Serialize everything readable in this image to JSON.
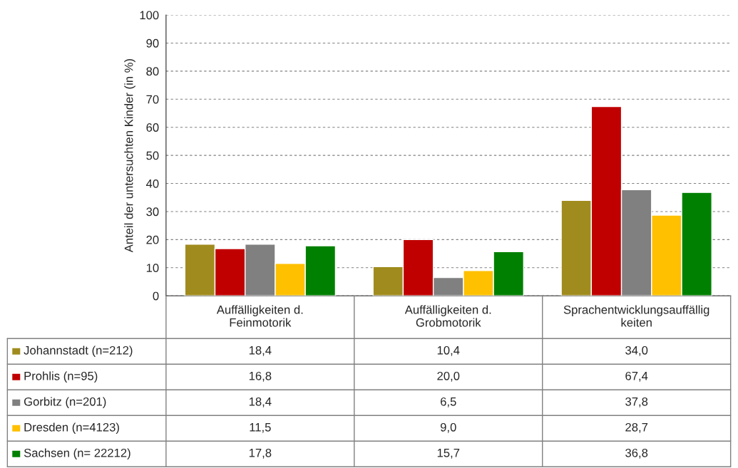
{
  "chart_data": {
    "type": "bar",
    "ylabel": "Anteil der untersuchten Kinder (in %)",
    "categories": [
      "Auffälligkeiten d.\nFeinmotorik",
      "Auffälligkeiten d.\nGrobmotorik",
      "Sprachentwicklungsauffällig\nkeiten"
    ],
    "series": [
      {
        "name": "Johannstadt (n=212)",
        "color": "#a08c1e",
        "values": [
          18.4,
          10.4,
          34.0
        ],
        "value_labels": [
          "18,4",
          "10,4",
          "34,0"
        ]
      },
      {
        "name": "Prohlis (n=95)",
        "color": "#c00000",
        "values": [
          16.8,
          20.0,
          67.4
        ],
        "value_labels": [
          "16,8",
          "20,0",
          "67,4"
        ]
      },
      {
        "name": "Gorbitz (n=201)",
        "color": "#808080",
        "values": [
          18.4,
          6.5,
          37.8
        ],
        "value_labels": [
          "18,4",
          "6,5",
          "37,8"
        ]
      },
      {
        "name": "Dresden (n=4123)",
        "color": "#ffc000",
        "values": [
          11.5,
          9.0,
          28.7
        ],
        "value_labels": [
          "11,5",
          "9,0",
          "28,7"
        ]
      },
      {
        "name": "Sachsen (n= 22212)",
        "color": "#008000",
        "values": [
          17.8,
          15.7,
          36.8
        ],
        "value_labels": [
          "17,8",
          "15,7",
          "36,8"
        ]
      }
    ],
    "ylim": [
      0,
      100
    ],
    "yticks": [
      0,
      10,
      20,
      30,
      40,
      50,
      60,
      70,
      80,
      90,
      100
    ],
    "grid": "y",
    "legend": "bottom left"
  }
}
